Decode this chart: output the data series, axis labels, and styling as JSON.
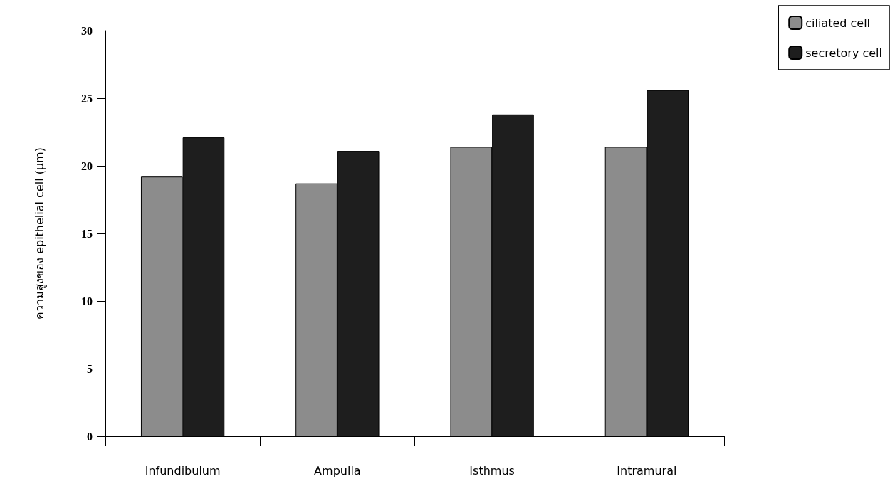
{
  "chart_data": {
    "type": "bar",
    "ylabel": "ความสูงของ epithelial cell (µm)",
    "categories": [
      "Infundibulum",
      "Ampulla",
      "Isthmus",
      "Intramural"
    ],
    "series": [
      {
        "name": "ciliated cell",
        "color": "#8c8c8c",
        "values": [
          19.2,
          18.7,
          21.4,
          21.4
        ]
      },
      {
        "name": "secretory cell",
        "color": "#1e1e1e",
        "values": [
          22.1,
          21.1,
          23.8,
          25.6
        ]
      }
    ],
    "ylim": [
      0,
      30
    ],
    "yticks": [
      0,
      5,
      10,
      15,
      20,
      25,
      30
    ],
    "grid": false,
    "legend": "top right"
  }
}
